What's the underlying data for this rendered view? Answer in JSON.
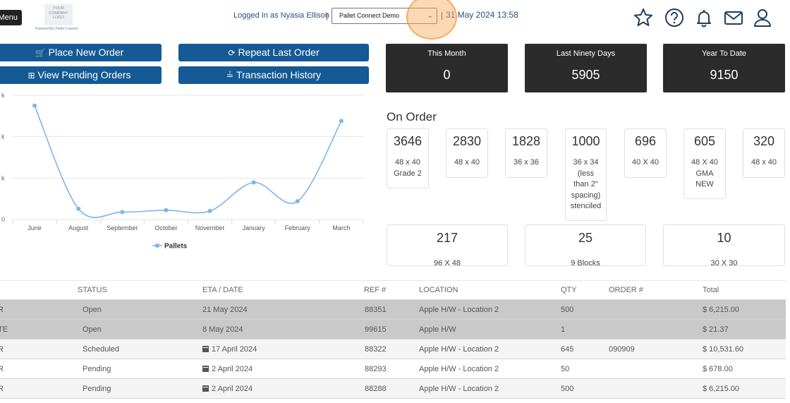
{
  "header": {
    "menu_label": "Menu",
    "logo_text": "YOUR COMPANY LOGO",
    "powered_by": "Powered By Pallet Connect",
    "logged_in": "Logged In as Nyasia Ellison",
    "separator": "|",
    "company_selected": "Pallet Connect Demo",
    "datetime": "31 May 2024 13:58",
    "icons": [
      "star-icon",
      "help-icon",
      "bell-icon",
      "mail-icon",
      "user-icon"
    ]
  },
  "actions": {
    "place_order": "Place New Order",
    "repeat_order": "Repeat Last Order",
    "pending_orders": "View Pending Orders",
    "transaction_history": "Transaction History"
  },
  "stats": [
    {
      "label": "This Month",
      "value": "0"
    },
    {
      "label": "Last Ninety Days",
      "value": "5905"
    },
    {
      "label": "Year To Date",
      "value": "9150"
    }
  ],
  "chart_data": {
    "type": "line",
    "categories": [
      "June",
      "August",
      "September",
      "October",
      "November",
      "January",
      "February",
      "March"
    ],
    "series": [
      {
        "name": "Pallets",
        "values": [
          2750,
          260,
          180,
          225,
          205,
          895,
          440,
          2380
        ]
      }
    ],
    "y_tick_labels": [
      "k",
      "k",
      "k",
      "0"
    ],
    "ylim": [
      0,
      3000
    ],
    "grid": true,
    "legend_position": "bottom",
    "color": "#7cb5ec"
  },
  "on_order": {
    "title": "On Order",
    "items": [
      {
        "qty": "3646",
        "size": [
          "48 x 40",
          "Grade 2"
        ]
      },
      {
        "qty": "2830",
        "size": [
          "48 x 40"
        ]
      },
      {
        "qty": "1828",
        "size": [
          "36 x 36"
        ]
      },
      {
        "qty": "1000",
        "size": [
          "36 x 34",
          "(less",
          "than 2\"",
          "spacing)",
          "stenciled"
        ]
      },
      {
        "qty": "696",
        "size": [
          "40 X 40"
        ]
      },
      {
        "qty": "605",
        "size": [
          "48 X 40",
          "GMA",
          "NEW"
        ]
      },
      {
        "qty": "320",
        "size": [
          "48 x 40"
        ]
      },
      {
        "qty": "217",
        "size": [
          "96 X 48"
        ]
      },
      {
        "qty": "25",
        "size": [
          "9 Blocks"
        ]
      },
      {
        "qty": "10",
        "size": [
          "30 X 30"
        ]
      }
    ]
  },
  "table": {
    "headers": [
      "STATUS",
      "ETA / DATE",
      "REF #",
      "LOCATION",
      "QTY",
      "ORDER #",
      "Total"
    ],
    "rows": [
      {
        "type": "R",
        "status": "Open",
        "eta": "21 May 2024",
        "cal": false,
        "ref": "88351",
        "location": "Apple H/W - Location 2",
        "qty": "500",
        "order": "",
        "total": "$ 6,215.00",
        "shade": "#c9c9c9"
      },
      {
        "type": "TE",
        "status": "Open",
        "eta": "8 May 2024",
        "cal": false,
        "ref": "99615",
        "location": "Apple H/W",
        "qty": "1",
        "order": "",
        "total": "$ 21.37",
        "shade": "#c9c9c9"
      },
      {
        "type": "R",
        "status": "Scheduled",
        "eta": "17 April 2024",
        "cal": true,
        "ref": "88322",
        "location": "Apple H/W - Location 2",
        "qty": "645",
        "order": "090909",
        "total": "$ 10,531.60",
        "shade": "#f4f4f4"
      },
      {
        "type": "R",
        "status": "Pending",
        "eta": "2 April 2024",
        "cal": true,
        "ref": "88293",
        "location": "Apple H/W - Location 2",
        "qty": "50",
        "order": "",
        "total": "$ 678.00",
        "shade": "#ffffff"
      },
      {
        "type": "R",
        "status": "Pending",
        "eta": "2 April 2024",
        "cal": true,
        "ref": "88288",
        "location": "Apple H/W - Location 2",
        "qty": "500",
        "order": "",
        "total": "$ 6,215.00",
        "shade": "#f4f4f4"
      }
    ]
  }
}
